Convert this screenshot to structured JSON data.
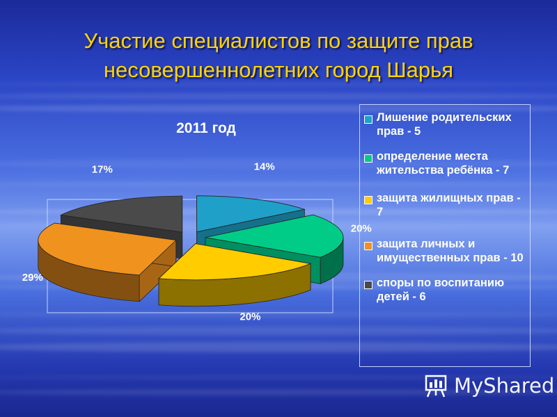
{
  "slide": {
    "title": "Участие специалистов по защите прав несовершеннолетних город Шарья"
  },
  "chart_data": {
    "type": "pie",
    "title": "2011 год",
    "slices": [
      {
        "label": "Лишение родительских прав - 5",
        "value": 5,
        "percent": "14%",
        "color": "#1ea0c8"
      },
      {
        "label": "определение места жительства ребёнка - 7",
        "value": 7,
        "percent": "20%",
        "color": "#00cc88"
      },
      {
        "label": "защита жилищных прав - 7",
        "value": 7,
        "percent": "20%",
        "color": "#ffcc00"
      },
      {
        "label": "защита личных и имущественных прав - 10",
        "value": 10,
        "percent": "29%",
        "color": "#f0921e"
      },
      {
        "label": "споры по воспитанию детей - 6",
        "value": 6,
        "percent": "17%",
        "color": "#4a4a4a"
      }
    ],
    "legend_position": "right"
  },
  "logo": {
    "text": "MyShared",
    "icon": "presentation-board-icon"
  }
}
